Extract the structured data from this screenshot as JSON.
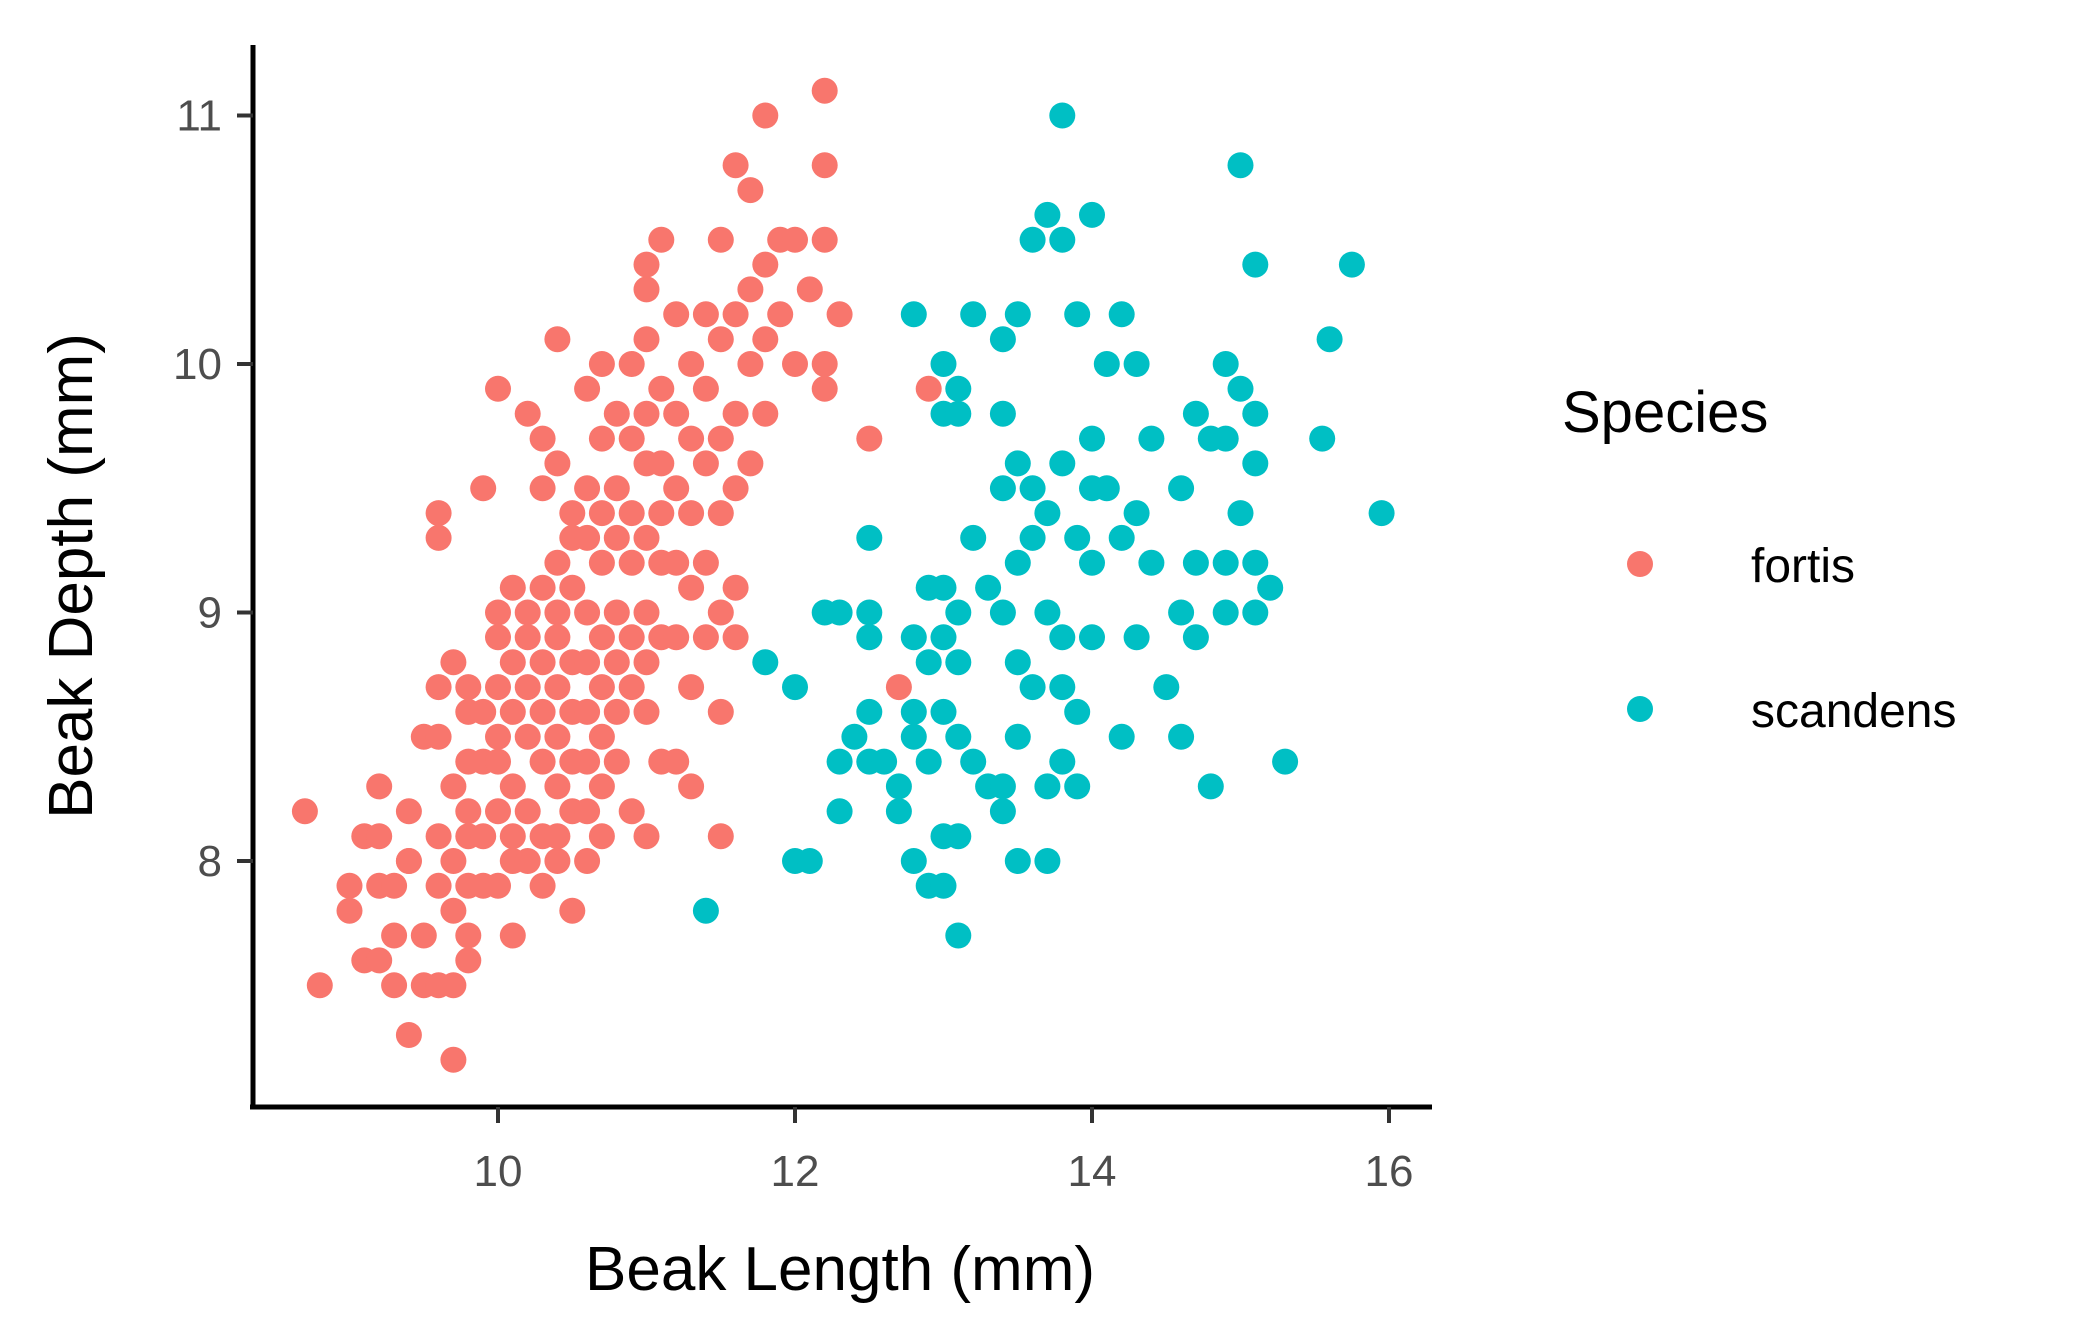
{
  "chart_data": {
    "type": "scatter",
    "title": "",
    "xlabel": "Beak Length (mm)",
    "ylabel": "Beak Depth (mm)",
    "xlim": [
      8.45,
      16.3
    ],
    "ylim": [
      7.0,
      11.3
    ],
    "x_ticks": [
      "10",
      "12",
      "14",
      "16"
    ],
    "y_ticks": [
      "8",
      "9",
      "10",
      "11"
    ],
    "grid": false,
    "legend": {
      "title": "Species",
      "position": "right"
    },
    "series": [
      {
        "name": "fortis",
        "color": "#F8766D",
        "points": [
          [
            8.7,
            8.2
          ],
          [
            8.8,
            7.5
          ],
          [
            9.0,
            7.9
          ],
          [
            9.0,
            7.8
          ],
          [
            9.1,
            8.1
          ],
          [
            9.1,
            7.6
          ],
          [
            9.2,
            8.3
          ],
          [
            9.2,
            8.1
          ],
          [
            9.2,
            7.6
          ],
          [
            9.2,
            7.9
          ],
          [
            9.3,
            7.9
          ],
          [
            9.3,
            7.7
          ],
          [
            9.3,
            7.5
          ],
          [
            9.4,
            7.3
          ],
          [
            9.4,
            8.0
          ],
          [
            9.4,
            8.0
          ],
          [
            9.4,
            8.2
          ],
          [
            9.5,
            8.5
          ],
          [
            9.5,
            7.7
          ],
          [
            9.5,
            7.5
          ],
          [
            9.6,
            9.4
          ],
          [
            9.6,
            9.3
          ],
          [
            9.6,
            8.7
          ],
          [
            9.6,
            8.5
          ],
          [
            9.6,
            8.1
          ],
          [
            9.6,
            7.9
          ],
          [
            9.6,
            7.5
          ],
          [
            9.7,
            8.8
          ],
          [
            9.7,
            8.3
          ],
          [
            9.7,
            8.0
          ],
          [
            9.7,
            7.8
          ],
          [
            9.7,
            7.5
          ],
          [
            9.7,
            7.2
          ],
          [
            9.8,
            8.7
          ],
          [
            9.8,
            8.4
          ],
          [
            9.8,
            8.1
          ],
          [
            9.8,
            7.9
          ],
          [
            9.8,
            7.6
          ],
          [
            9.8,
            7.7
          ],
          [
            9.8,
            8.6
          ],
          [
            9.8,
            8.2
          ],
          [
            9.9,
            9.5
          ],
          [
            9.9,
            8.6
          ],
          [
            9.9,
            8.4
          ],
          [
            9.9,
            8.1
          ],
          [
            9.9,
            7.9
          ],
          [
            10.0,
            9.9
          ],
          [
            10.0,
            9.0
          ],
          [
            10.0,
            8.7
          ],
          [
            10.0,
            8.4
          ],
          [
            10.0,
            8.2
          ],
          [
            10.0,
            7.9
          ],
          [
            10.0,
            8.5
          ],
          [
            10.0,
            8.9
          ],
          [
            10.1,
            9.1
          ],
          [
            10.1,
            8.8
          ],
          [
            10.1,
            8.6
          ],
          [
            10.1,
            8.3
          ],
          [
            10.1,
            8.1
          ],
          [
            10.1,
            7.7
          ],
          [
            10.1,
            8.0
          ],
          [
            10.2,
            9.8
          ],
          [
            10.2,
            9.0
          ],
          [
            10.2,
            8.9
          ],
          [
            10.2,
            8.7
          ],
          [
            10.2,
            8.5
          ],
          [
            10.2,
            8.2
          ],
          [
            10.2,
            8.0
          ],
          [
            10.3,
            9.7
          ],
          [
            10.3,
            9.5
          ],
          [
            10.3,
            9.1
          ],
          [
            10.3,
            8.8
          ],
          [
            10.3,
            8.6
          ],
          [
            10.3,
            8.4
          ],
          [
            10.3,
            8.1
          ],
          [
            10.3,
            7.9
          ],
          [
            10.4,
            10.1
          ],
          [
            10.4,
            9.6
          ],
          [
            10.4,
            9.2
          ],
          [
            10.4,
            9.0
          ],
          [
            10.4,
            8.9
          ],
          [
            10.4,
            8.7
          ],
          [
            10.4,
            8.5
          ],
          [
            10.4,
            8.3
          ],
          [
            10.4,
            8.1
          ],
          [
            10.4,
            8.0
          ],
          [
            10.5,
            9.4
          ],
          [
            10.5,
            9.1
          ],
          [
            10.5,
            8.8
          ],
          [
            10.5,
            8.6
          ],
          [
            10.5,
            8.4
          ],
          [
            10.5,
            8.2
          ],
          [
            10.5,
            7.8
          ],
          [
            10.5,
            9.3
          ],
          [
            10.6,
            9.9
          ],
          [
            10.6,
            9.5
          ],
          [
            10.6,
            9.3
          ],
          [
            10.6,
            9.0
          ],
          [
            10.6,
            8.8
          ],
          [
            10.6,
            8.6
          ],
          [
            10.6,
            8.4
          ],
          [
            10.6,
            8.2
          ],
          [
            10.6,
            8.0
          ],
          [
            10.7,
            10.0
          ],
          [
            10.7,
            9.7
          ],
          [
            10.7,
            9.4
          ],
          [
            10.7,
            9.2
          ],
          [
            10.7,
            8.9
          ],
          [
            10.7,
            8.7
          ],
          [
            10.7,
            8.5
          ],
          [
            10.7,
            8.3
          ],
          [
            10.7,
            8.1
          ],
          [
            10.8,
            9.8
          ],
          [
            10.8,
            9.5
          ],
          [
            10.8,
            9.3
          ],
          [
            10.8,
            9.0
          ],
          [
            10.8,
            8.8
          ],
          [
            10.8,
            8.6
          ],
          [
            10.8,
            8.4
          ],
          [
            10.9,
            10.0
          ],
          [
            10.9,
            9.7
          ],
          [
            10.9,
            9.4
          ],
          [
            10.9,
            9.2
          ],
          [
            10.9,
            8.9
          ],
          [
            10.9,
            8.7
          ],
          [
            10.9,
            8.2
          ],
          [
            11.0,
            10.3
          ],
          [
            11.0,
            10.1
          ],
          [
            11.0,
            9.8
          ],
          [
            11.0,
            9.6
          ],
          [
            11.0,
            9.3
          ],
          [
            11.0,
            9.0
          ],
          [
            11.0,
            8.8
          ],
          [
            11.0,
            8.6
          ],
          [
            11.0,
            8.1
          ],
          [
            11.0,
            10.4
          ],
          [
            11.1,
            10.5
          ],
          [
            11.1,
            9.9
          ],
          [
            11.1,
            9.6
          ],
          [
            11.1,
            9.4
          ],
          [
            11.1,
            9.2
          ],
          [
            11.1,
            8.9
          ],
          [
            11.1,
            8.4
          ],
          [
            11.2,
            10.2
          ],
          [
            11.2,
            9.8
          ],
          [
            11.2,
            9.5
          ],
          [
            11.2,
            9.2
          ],
          [
            11.2,
            8.9
          ],
          [
            11.2,
            8.4
          ],
          [
            11.3,
            10.0
          ],
          [
            11.3,
            9.7
          ],
          [
            11.3,
            9.4
          ],
          [
            11.3,
            9.1
          ],
          [
            11.3,
            8.7
          ],
          [
            11.3,
            8.3
          ],
          [
            11.4,
            10.2
          ],
          [
            11.4,
            9.9
          ],
          [
            11.4,
            9.6
          ],
          [
            11.4,
            9.2
          ],
          [
            11.4,
            8.9
          ],
          [
            11.5,
            10.5
          ],
          [
            11.5,
            10.1
          ],
          [
            11.5,
            9.7
          ],
          [
            11.5,
            9.4
          ],
          [
            11.5,
            9.0
          ],
          [
            11.5,
            8.6
          ],
          [
            11.5,
            8.1
          ],
          [
            11.6,
            10.8
          ],
          [
            11.6,
            10.2
          ],
          [
            11.6,
            9.8
          ],
          [
            11.6,
            9.5
          ],
          [
            11.6,
            9.1
          ],
          [
            11.6,
            8.9
          ],
          [
            11.7,
            10.7
          ],
          [
            11.7,
            10.3
          ],
          [
            11.7,
            10.0
          ],
          [
            11.7,
            9.6
          ],
          [
            11.8,
            11.0
          ],
          [
            11.8,
            10.4
          ],
          [
            11.8,
            10.1
          ],
          [
            11.8,
            9.8
          ],
          [
            11.9,
            10.5
          ],
          [
            11.9,
            10.2
          ],
          [
            12.0,
            10.5
          ],
          [
            12.0,
            10.0
          ],
          [
            12.1,
            10.3
          ],
          [
            12.2,
            11.1
          ],
          [
            12.2,
            10.8
          ],
          [
            12.2,
            10.5
          ],
          [
            12.2,
            10.0
          ],
          [
            12.2,
            9.9
          ],
          [
            12.3,
            10.2
          ],
          [
            12.5,
            9.7
          ],
          [
            12.7,
            8.7
          ],
          [
            12.9,
            9.9
          ]
        ]
      },
      {
        "name": "scandens",
        "color": "#00BFC4",
        "points": [
          [
            11.4,
            7.8
          ],
          [
            11.8,
            8.8
          ],
          [
            12.0,
            8.7
          ],
          [
            12.0,
            8.0
          ],
          [
            12.1,
            8.0
          ],
          [
            12.2,
            9.0
          ],
          [
            12.3,
            9.0
          ],
          [
            12.3,
            8.4
          ],
          [
            12.3,
            8.2
          ],
          [
            12.4,
            8.5
          ],
          [
            12.5,
            9.0
          ],
          [
            12.5,
            8.9
          ],
          [
            12.5,
            8.6
          ],
          [
            12.5,
            8.4
          ],
          [
            12.5,
            9.3
          ],
          [
            12.6,
            8.4
          ],
          [
            12.7,
            8.3
          ],
          [
            12.7,
            8.2
          ],
          [
            12.8,
            10.2
          ],
          [
            12.8,
            8.9
          ],
          [
            12.8,
            8.6
          ],
          [
            12.8,
            8.5
          ],
          [
            12.8,
            8.0
          ],
          [
            12.9,
            9.1
          ],
          [
            12.9,
            8.8
          ],
          [
            12.9,
            8.4
          ],
          [
            12.9,
            7.9
          ],
          [
            13.0,
            10.0
          ],
          [
            13.0,
            9.8
          ],
          [
            13.0,
            9.1
          ],
          [
            13.0,
            8.9
          ],
          [
            13.0,
            8.6
          ],
          [
            13.0,
            8.1
          ],
          [
            13.0,
            7.9
          ],
          [
            13.1,
            9.9
          ],
          [
            13.1,
            9.8
          ],
          [
            13.1,
            9.0
          ],
          [
            13.1,
            8.8
          ],
          [
            13.1,
            8.5
          ],
          [
            13.1,
            8.1
          ],
          [
            13.1,
            7.7
          ],
          [
            13.2,
            10.2
          ],
          [
            13.2,
            9.3
          ],
          [
            13.2,
            8.4
          ],
          [
            13.3,
            9.1
          ],
          [
            13.3,
            8.3
          ],
          [
            13.4,
            10.1
          ],
          [
            13.4,
            9.8
          ],
          [
            13.4,
            9.5
          ],
          [
            13.4,
            9.0
          ],
          [
            13.4,
            8.3
          ],
          [
            13.4,
            8.2
          ],
          [
            13.5,
            10.2
          ],
          [
            13.5,
            9.6
          ],
          [
            13.5,
            9.2
          ],
          [
            13.5,
            8.8
          ],
          [
            13.5,
            8.5
          ],
          [
            13.5,
            8.0
          ],
          [
            13.6,
            10.5
          ],
          [
            13.6,
            9.5
          ],
          [
            13.6,
            9.3
          ],
          [
            13.6,
            8.7
          ],
          [
            13.7,
            10.6
          ],
          [
            13.7,
            9.4
          ],
          [
            13.7,
            9.0
          ],
          [
            13.7,
            8.3
          ],
          [
            13.7,
            8.0
          ],
          [
            13.8,
            11.0
          ],
          [
            13.8,
            10.5
          ],
          [
            13.8,
            9.6
          ],
          [
            13.8,
            8.9
          ],
          [
            13.8,
            8.7
          ],
          [
            13.8,
            8.4
          ],
          [
            13.9,
            10.2
          ],
          [
            13.9,
            9.3
          ],
          [
            13.9,
            8.6
          ],
          [
            13.9,
            8.3
          ],
          [
            14.0,
            10.6
          ],
          [
            14.0,
            9.7
          ],
          [
            14.0,
            9.5
          ],
          [
            14.0,
            9.2
          ],
          [
            14.0,
            8.9
          ],
          [
            14.1,
            10.0
          ],
          [
            14.1,
            9.5
          ],
          [
            14.2,
            10.2
          ],
          [
            14.2,
            9.3
          ],
          [
            14.2,
            8.5
          ],
          [
            14.3,
            10.0
          ],
          [
            14.3,
            9.4
          ],
          [
            14.3,
            8.9
          ],
          [
            14.4,
            9.7
          ],
          [
            14.4,
            9.2
          ],
          [
            14.5,
            8.7
          ],
          [
            14.6,
            9.5
          ],
          [
            14.6,
            9.0
          ],
          [
            14.6,
            8.5
          ],
          [
            14.7,
            9.8
          ],
          [
            14.7,
            9.2
          ],
          [
            14.7,
            8.9
          ],
          [
            14.8,
            9.7
          ],
          [
            14.8,
            8.3
          ],
          [
            14.9,
            10.0
          ],
          [
            14.9,
            9.7
          ],
          [
            14.9,
            9.2
          ],
          [
            14.9,
            9.0
          ],
          [
            15.0,
            10.8
          ],
          [
            15.0,
            9.9
          ],
          [
            15.0,
            9.4
          ],
          [
            15.1,
            10.4
          ],
          [
            15.1,
            9.8
          ],
          [
            15.1,
            9.6
          ],
          [
            15.1,
            9.2
          ],
          [
            15.1,
            9.0
          ],
          [
            15.2,
            9.1
          ],
          [
            15.3,
            8.4
          ],
          [
            15.55,
            9.7
          ],
          [
            15.6,
            10.1
          ],
          [
            15.75,
            10.4
          ],
          [
            15.95,
            9.4
          ]
        ]
      }
    ]
  }
}
